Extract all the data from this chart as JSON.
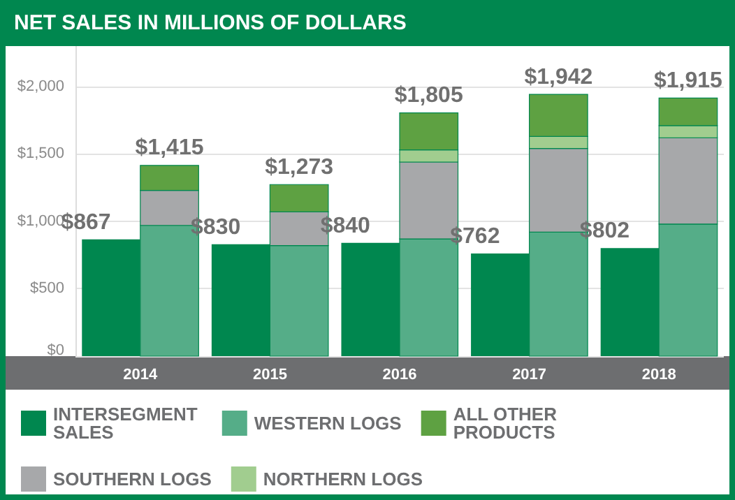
{
  "chart_data": {
    "type": "bar",
    "title": "NET SALES IN MILLIONS OF DOLLARS",
    "categories": [
      "2014",
      "2015",
      "2016",
      "2017",
      "2018"
    ],
    "series": [
      {
        "name": "INTERSEGMENT SALES",
        "color": "#00874f",
        "values": [
          867,
          830,
          840,
          762,
          802
        ],
        "value_labels": [
          "$867",
          "$830",
          "$840",
          "$762",
          "$802"
        ]
      },
      {
        "name": "WESTERN LOGS",
        "color": "#55ad88",
        "values": [
          970,
          820,
          870,
          920,
          980
        ],
        "base": [
          0,
          0,
          0,
          0,
          0
        ]
      },
      {
        "name": "SOUTHERN LOGS",
        "color": "#a7a8aa",
        "values": [
          260,
          250,
          570,
          620,
          640
        ],
        "base": [
          970,
          820,
          870,
          920,
          980
        ]
      },
      {
        "name": "NORTHERN LOGS",
        "color": "#a1cd8f",
        "values": [
          null,
          null,
          90,
          90,
          90
        ],
        "base": [
          null,
          null,
          1440,
          1540,
          1620
        ]
      },
      {
        "name": "ALL OTHER PRODUCTS",
        "color": "#5ea142",
        "values": [
          185,
          203,
          275,
          312,
          205
        ],
        "base": [
          1230,
          1070,
          1530,
          1630,
          1710
        ],
        "value_labels": [
          "$1,415",
          "$1,273",
          "$1,805",
          "$1,942",
          "$1,915"
        ]
      }
    ],
    "ylim": [
      0,
      2300
    ],
    "yticks": [
      {
        "value": 0,
        "label": "$0"
      },
      {
        "value": 500,
        "label": "$500"
      },
      {
        "value": 1000,
        "label": "$1,000"
      },
      {
        "value": 1500,
        "label": "$1,500"
      },
      {
        "value": 2000,
        "label": "$2,000"
      }
    ],
    "grid": "y",
    "legend": "bottom"
  }
}
